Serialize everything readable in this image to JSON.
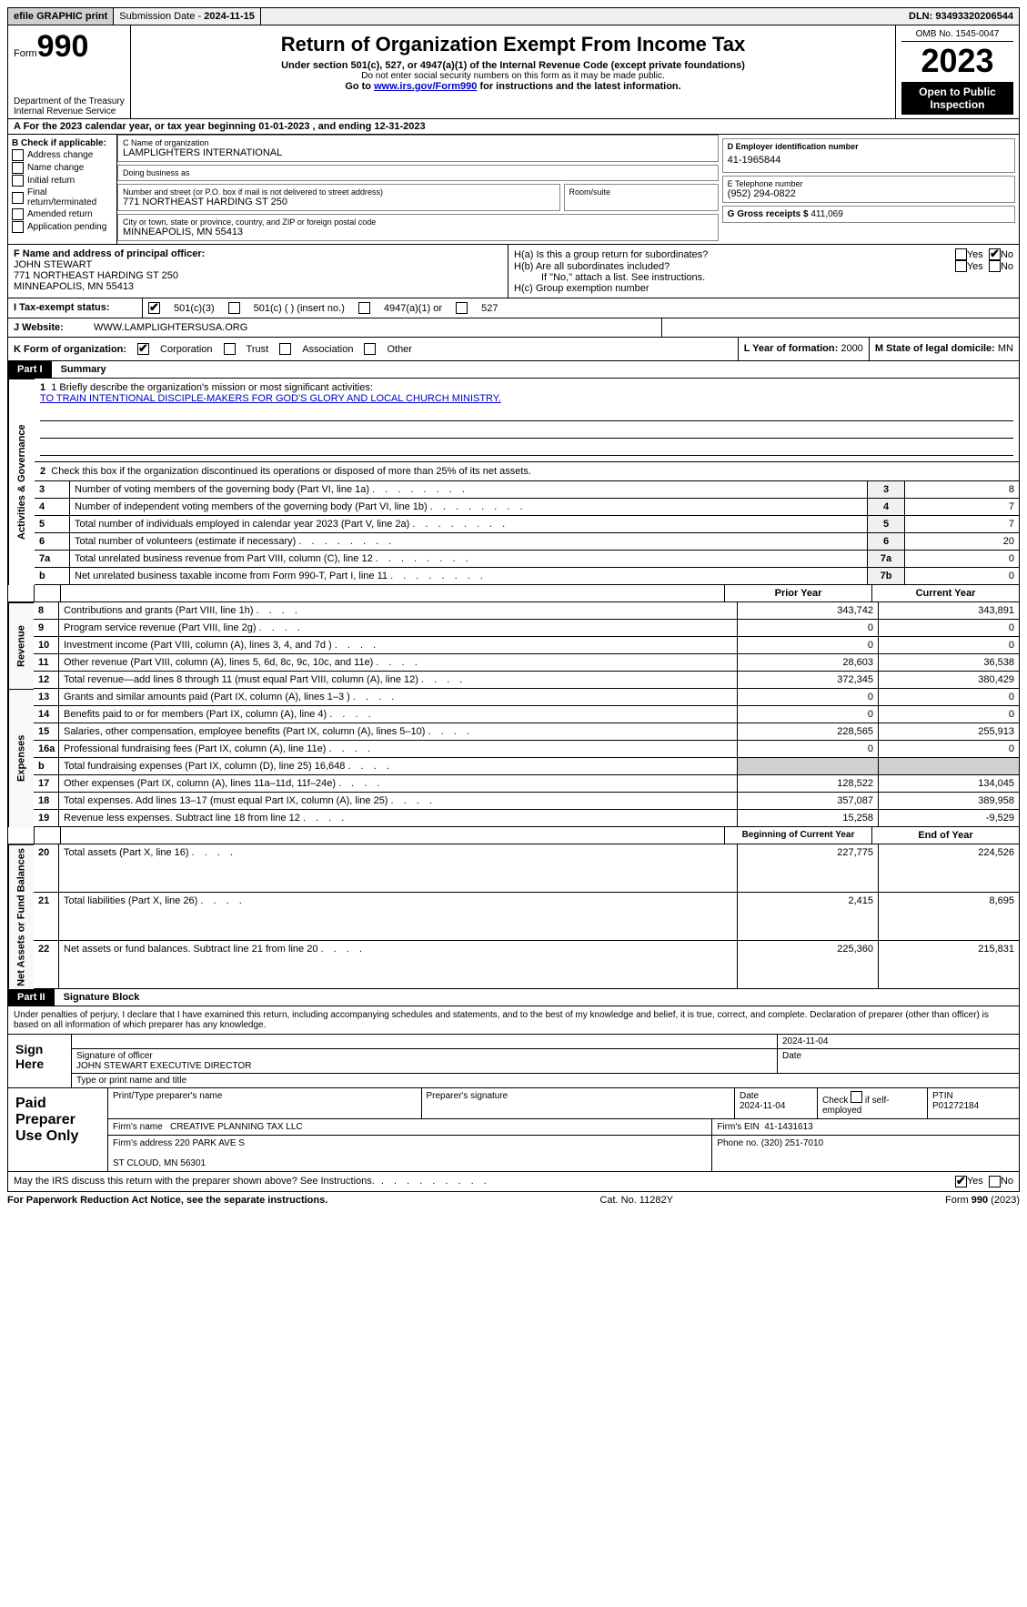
{
  "top": {
    "efile": "efile GRAPHIC print",
    "submission_lbl": "Submission Date - ",
    "submission_date": "2024-11-15",
    "dln_lbl": "DLN: ",
    "dln": "93493320206544"
  },
  "header": {
    "form_label": "Form",
    "form_number": "990",
    "dept": "Department of the Treasury\nInternal Revenue Service",
    "title": "Return of Organization Exempt From Income Tax",
    "sub1": "Under section 501(c), 527, or 4947(a)(1) of the Internal Revenue Code (except private foundations)",
    "sub2": "Do not enter social security numbers on this form as it may be made public.",
    "sub3_pre": "Go to ",
    "sub3_link": "www.irs.gov/Form990",
    "sub3_post": " for instructions and the latest information.",
    "omb": "OMB No. 1545-0047",
    "year": "2023",
    "inspect": "Open to Public Inspection"
  },
  "rowA": {
    "text_pre": "A For the 2023 calendar year, or tax year beginning ",
    "begin": "01-01-2023",
    "mid": "  , and ending ",
    "end": "12-31-2023"
  },
  "colB": {
    "header": "B Check if applicable:",
    "items": [
      "Address change",
      "Name change",
      "Initial return",
      "Final return/terminated",
      "Amended return",
      "Application pending"
    ]
  },
  "colC": {
    "name_lbl": "C Name of organization",
    "name": "LAMPLIGHTERS INTERNATIONAL",
    "dba_lbl": "Doing business as",
    "dba": "",
    "street_lbl": "Number and street (or P.O. box if mail is not delivered to street address)",
    "street": "771 NORTHEAST HARDING ST 250",
    "room_lbl": "Room/suite",
    "city_lbl": "City or town, state or province, country, and ZIP or foreign postal code",
    "city": "MINNEAPOLIS, MN  55413"
  },
  "colD": {
    "ein_lbl": "D Employer identification number",
    "ein": "41-1965844",
    "phone_lbl": "E Telephone number",
    "phone": "(952) 294-0822",
    "gross_lbl": "G Gross receipts $ ",
    "gross": "411,069"
  },
  "rowF": {
    "lbl": "F  Name and address of principal officer:",
    "name": "JOHN STEWART",
    "addr1": "771 NORTHEAST HARDING ST 250",
    "addr2": "MINNEAPOLIS, MN  55413"
  },
  "rowH": {
    "ha": "H(a)  Is this a group return for subordinates?",
    "hb": "H(b)  Are all subordinates included?",
    "hb_note": "If \"No,\" attach a list. See instructions.",
    "hc": "H(c)  Group exemption number",
    "yes": "Yes",
    "no": "No"
  },
  "rowI": {
    "lbl": "I     Tax-exempt status:",
    "opt1": "501(c)(3)",
    "opt2": "501(c) (  ) (insert no.)",
    "opt3": "4947(a)(1) or",
    "opt4": "527"
  },
  "rowJ": {
    "lbl": "J     Website:",
    "val": "WWW.LAMPLIGHTERSUSA.ORG"
  },
  "rowK": {
    "lbl": "K Form of organization:",
    "opts": [
      "Corporation",
      "Trust",
      "Association",
      "Other"
    ],
    "L_lbl": "L Year of formation: ",
    "L_val": "2000",
    "M_lbl": "M State of legal domicile: ",
    "M_val": "MN"
  },
  "part1": {
    "label": "Part I",
    "title": "Summary",
    "line1_lbl": "1   Briefly describe the organization's mission or most significant activities:",
    "mission": "TO TRAIN INTENTIONAL DISCIPLE-MAKERS FOR GOD'S GLORY AND LOCAL CHURCH MINISTRY.",
    "line2": "Check this box       if the organization discontinued its operations or disposed of more than 25% of its net assets.",
    "vert_ag": "Activities & Governance",
    "vert_rev": "Revenue",
    "vert_exp": "Expenses",
    "vert_na": "Net Assets or Fund Balances",
    "lines_ag": [
      {
        "n": "3",
        "t": "Number of voting members of the governing body (Part VI, line 1a)",
        "box": "3",
        "v": "8"
      },
      {
        "n": "4",
        "t": "Number of independent voting members of the governing body (Part VI, line 1b)",
        "box": "4",
        "v": "7"
      },
      {
        "n": "5",
        "t": "Total number of individuals employed in calendar year 2023 (Part V, line 2a)",
        "box": "5",
        "v": "7"
      },
      {
        "n": "6",
        "t": "Total number of volunteers (estimate if necessary)",
        "box": "6",
        "v": "20"
      },
      {
        "n": "7a",
        "t": "Total unrelated business revenue from Part VIII, column (C), line 12",
        "box": "7a",
        "v": "0"
      },
      {
        "n": "b",
        "t": "Net unrelated business taxable income from Form 990-T, Part I, line 11",
        "box": "7b",
        "v": "0"
      }
    ],
    "hdr_prior": "Prior Year",
    "hdr_curr": "Current Year",
    "lines_rev": [
      {
        "n": "8",
        "t": "Contributions and grants (Part VIII, line 1h)",
        "p": "343,742",
        "c": "343,891"
      },
      {
        "n": "9",
        "t": "Program service revenue (Part VIII, line 2g)",
        "p": "0",
        "c": "0"
      },
      {
        "n": "10",
        "t": "Investment income (Part VIII, column (A), lines 3, 4, and 7d )",
        "p": "0",
        "c": "0"
      },
      {
        "n": "11",
        "t": "Other revenue (Part VIII, column (A), lines 5, 6d, 8c, 9c, 10c, and 11e)",
        "p": "28,603",
        "c": "36,538"
      },
      {
        "n": "12",
        "t": "Total revenue—add lines 8 through 11 (must equal Part VIII, column (A), line 12)",
        "p": "372,345",
        "c": "380,429"
      }
    ],
    "lines_exp": [
      {
        "n": "13",
        "t": "Grants and similar amounts paid (Part IX, column (A), lines 1–3 )",
        "p": "0",
        "c": "0"
      },
      {
        "n": "14",
        "t": "Benefits paid to or for members (Part IX, column (A), line 4)",
        "p": "0",
        "c": "0"
      },
      {
        "n": "15",
        "t": "Salaries, other compensation, employee benefits (Part IX, column (A), lines 5–10)",
        "p": "228,565",
        "c": "255,913"
      },
      {
        "n": "16a",
        "t": "Professional fundraising fees (Part IX, column (A), line 11e)",
        "p": "0",
        "c": "0"
      },
      {
        "n": "b",
        "t": "Total fundraising expenses (Part IX, column (D), line 25) 16,648",
        "p": "",
        "c": "",
        "shade": true
      },
      {
        "n": "17",
        "t": "Other expenses (Part IX, column (A), lines 11a–11d, 11f–24e)",
        "p": "128,522",
        "c": "134,045"
      },
      {
        "n": "18",
        "t": "Total expenses. Add lines 13–17 (must equal Part IX, column (A), line 25)",
        "p": "357,087",
        "c": "389,958"
      },
      {
        "n": "19",
        "t": "Revenue less expenses. Subtract line 18 from line 12",
        "p": "15,258",
        "c": "-9,529"
      }
    ],
    "hdr_begin": "Beginning of Current Year",
    "hdr_end": "End of Year",
    "lines_na": [
      {
        "n": "20",
        "t": "Total assets (Part X, line 16)",
        "p": "227,775",
        "c": "224,526"
      },
      {
        "n": "21",
        "t": "Total liabilities (Part X, line 26)",
        "p": "2,415",
        "c": "8,695"
      },
      {
        "n": "22",
        "t": "Net assets or fund balances. Subtract line 21 from line 20",
        "p": "225,360",
        "c": "215,831"
      }
    ]
  },
  "part2": {
    "label": "Part II",
    "title": "Signature Block",
    "text": "Under penalties of perjury, I declare that I have examined this return, including accompanying schedules and statements, and to the best of my knowledge and belief, it is true, correct, and complete. Declaration of preparer (other than officer) is based on all information of which preparer has any knowledge.",
    "sign_here": "Sign Here",
    "sig_date": "2024-11-04",
    "sig_lbl": "Signature of officer",
    "date_lbl": "Date",
    "officer": "JOHN STEWART  EXECUTIVE DIRECTOR",
    "type_lbl": "Type or print name and title",
    "paid": "Paid Preparer Use Only",
    "prep_name_lbl": "Print/Type preparer's name",
    "prep_sig_lbl": "Preparer's signature",
    "prep_date": "2024-11-04",
    "self_emp": "Check       if self-employed",
    "ptin_lbl": "PTIN",
    "ptin": "P01272184",
    "firm_name_lbl": "Firm's name",
    "firm_name": "CREATIVE PLANNING TAX LLC",
    "firm_ein_lbl": "Firm's EIN",
    "firm_ein": "41-1431613",
    "firm_addr_lbl": "Firm's address",
    "firm_addr1": "220 PARK AVE S",
    "firm_addr2": "ST CLOUD, MN  56301",
    "firm_phone_lbl": "Phone no.",
    "firm_phone": "(320) 251-7010",
    "discuss": "May the IRS discuss this return with the preparer shown above? See Instructions.",
    "yes": "Yes",
    "no": "No"
  },
  "footer": {
    "left": "For Paperwork Reduction Act Notice, see the separate instructions.",
    "cat": "Cat. No. 11282Y",
    "right": "Form 990 (2023)"
  }
}
